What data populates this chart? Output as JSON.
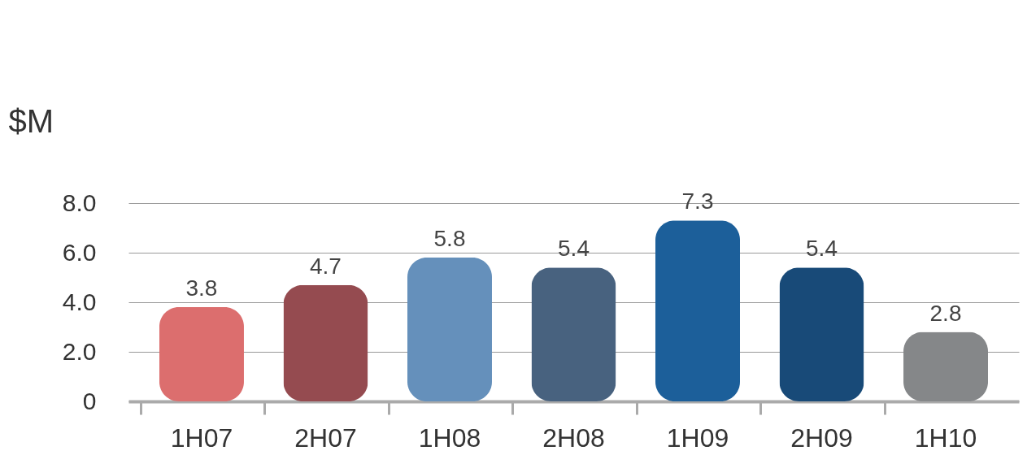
{
  "chart_data": {
    "type": "bar",
    "ylabel": "$M",
    "categories": [
      "1H07",
      "2H07",
      null,
      "1H08",
      "2H08",
      null,
      "1H09",
      "2H09",
      null,
      "1H10"
    ],
    "values": [
      3.8,
      4.7,
      null,
      5.8,
      5.4,
      null,
      7.3,
      5.4,
      null,
      2.8
    ],
    "colors": [
      "#dc6e6e",
      "#954b50",
      null,
      "#6590bb",
      "#48627f",
      null,
      "#1c5f9a",
      "#184a78",
      null,
      "#858789"
    ],
    "ylim": [
      0,
      8
    ],
    "yticks": [
      0,
      {
        "value": 2,
        "label": "2.0"
      },
      {
        "value": 4,
        "label": "4.0"
      },
      {
        "value": 6,
        "label": "6.0"
      },
      {
        "value": 8,
        "label": "8.0"
      }
    ],
    "grid": "y",
    "data_labels": true
  }
}
